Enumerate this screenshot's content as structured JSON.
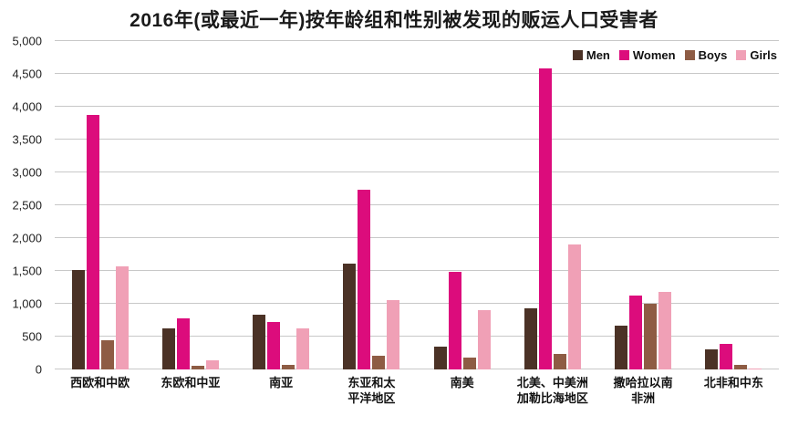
{
  "title": "2016年(或最近一年)按年龄组和性别被发现的贩运人口受害者",
  "chart_data": {
    "type": "bar",
    "title": "2016年(或最近一年)按年龄组和性别被发现的贩运人口受害者",
    "categories": [
      "西欧和中欧",
      "东欧和中亚",
      "南亚",
      "东亚和太\n平洋地区",
      "南美",
      "北美、中美洲\n加勒比海地区",
      "撒哈拉以南\n非洲",
      "北非和中东"
    ],
    "series": [
      {
        "name": "Men",
        "color": "#4b3226",
        "values": [
          1520,
          620,
          830,
          1610,
          350,
          930,
          660,
          310
        ]
      },
      {
        "name": "Women",
        "color": "#dc0c7c",
        "values": [
          3880,
          775,
          720,
          2730,
          1490,
          4590,
          1130,
          390
        ]
      },
      {
        "name": "Boys",
        "color": "#8e5c44",
        "values": [
          440,
          55,
          75,
          215,
          180,
          230,
          1000,
          65
        ]
      },
      {
        "name": "Girls",
        "color": "#f0a0b6",
        "values": [
          1570,
          140,
          630,
          1050,
          900,
          1900,
          1180,
          15
        ]
      }
    ],
    "ylim": [
      0,
      5000
    ],
    "ytick_step": 500,
    "yticks": [
      "0",
      "500",
      "1,000",
      "1,500",
      "2,000",
      "2,500",
      "3,000",
      "3,500",
      "4,000",
      "4,500",
      "5,000"
    ],
    "grid": true,
    "legend_position": "top-right",
    "xlabel": "",
    "ylabel": ""
  }
}
